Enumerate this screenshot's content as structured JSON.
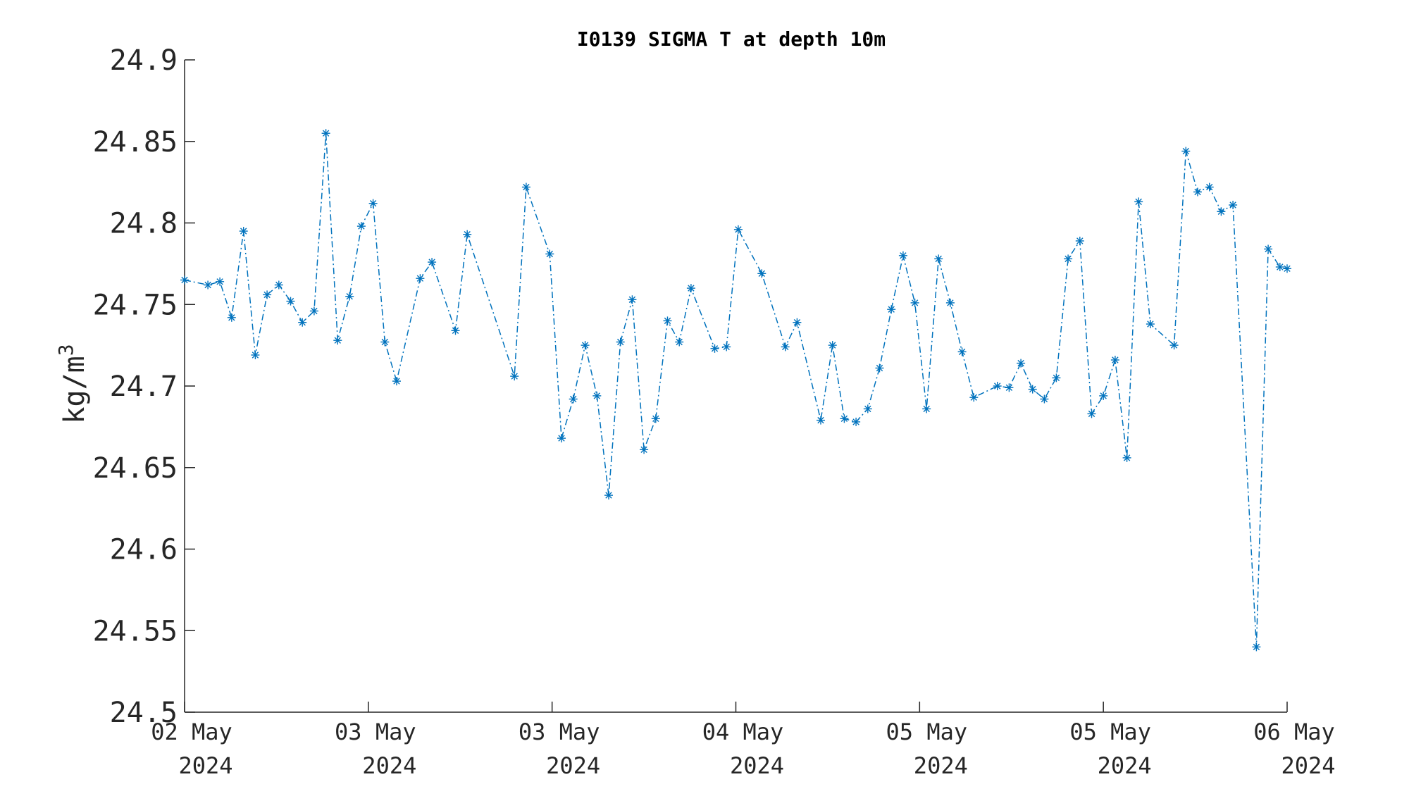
{
  "chart_data": {
    "type": "line",
    "title": "I0139 SIGMA T at depth 10m",
    "ylabel": "kg/m",
    "ylabel_superscript": "3",
    "xlabel": "",
    "ylim": [
      24.5,
      24.9
    ],
    "yticks": [
      24.5,
      24.55,
      24.6,
      24.65,
      24.7,
      24.75,
      24.8,
      24.85,
      24.9
    ],
    "ytick_labels": [
      "24.5",
      "24.55",
      "24.6",
      "24.65",
      "24.7",
      "24.75",
      "24.8",
      "24.85",
      "24.9"
    ],
    "xlim": [
      0,
      6
    ],
    "xticks": [
      {
        "line1": "02 May",
        "line2": "2024"
      },
      {
        "line1": "03 May",
        "line2": "2024"
      },
      {
        "line1": "03 May",
        "line2": "2024"
      },
      {
        "line1": "04 May",
        "line2": "2024"
      },
      {
        "line1": "05 May",
        "line2": "2024"
      },
      {
        "line1": "05 May",
        "line2": "2024"
      },
      {
        "line1": "06 May",
        "line2": "2024"
      }
    ],
    "grid": false,
    "legend": "none",
    "series": [
      {
        "color": "#0072BD",
        "line_style": "dash-dot",
        "marker": "asterisk",
        "x": [
          0,
          0.127,
          0.192,
          0.256,
          0.321,
          0.385,
          0.449,
          0.513,
          0.577,
          0.641,
          0.705,
          0.769,
          0.833,
          0.898,
          0.962,
          1.026,
          1.09,
          1.154,
          1.282,
          1.346,
          1.474,
          1.538,
          1.795,
          1.859,
          1.987,
          2.051,
          2.115,
          2.18,
          2.244,
          2.308,
          2.372,
          2.436,
          2.5,
          2.564,
          2.628,
          2.692,
          2.756,
          2.885,
          2.949,
          3.013,
          3.141,
          3.269,
          3.333,
          3.462,
          3.526,
          3.59,
          3.654,
          3.718,
          3.782,
          3.846,
          3.91,
          3.974,
          4.038,
          4.103,
          4.167,
          4.231,
          4.295,
          4.423,
          4.487,
          4.551,
          4.615,
          4.679,
          4.744,
          4.808,
          4.872,
          4.936,
          5.0,
          5.064,
          5.128,
          5.192,
          5.256,
          5.385,
          5.449,
          5.513,
          5.577,
          5.641,
          5.705,
          5.833,
          5.897,
          5.961,
          6.0
        ],
        "y": [
          24.765,
          24.762,
          24.764,
          24.742,
          24.795,
          24.719,
          24.756,
          24.762,
          24.752,
          24.739,
          24.746,
          24.855,
          24.728,
          24.755,
          24.798,
          24.812,
          24.727,
          24.703,
          24.766,
          24.776,
          24.734,
          24.793,
          24.706,
          24.822,
          24.781,
          24.668,
          24.692,
          24.725,
          24.694,
          24.633,
          24.727,
          24.753,
          24.661,
          24.68,
          24.74,
          24.727,
          24.76,
          24.723,
          24.724,
          24.796,
          24.769,
          24.724,
          24.739,
          24.679,
          24.725,
          24.68,
          24.678,
          24.686,
          24.711,
          24.747,
          24.78,
          24.751,
          24.686,
          24.778,
          24.751,
          24.721,
          24.693,
          24.7,
          24.699,
          24.714,
          24.698,
          24.692,
          24.705,
          24.778,
          24.789,
          24.683,
          24.694,
          24.716,
          24.656,
          24.813,
          24.738,
          24.725,
          24.844,
          24.819,
          24.822,
          24.807,
          24.811,
          24.54,
          24.784,
          24.773,
          24.772
        ]
      }
    ]
  }
}
